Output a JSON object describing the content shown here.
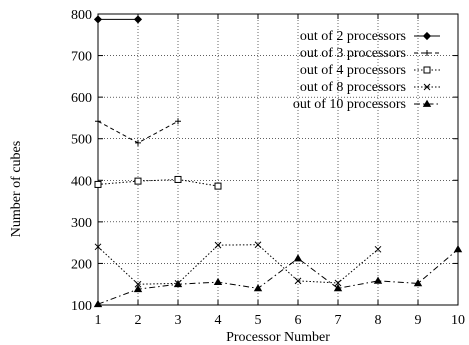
{
  "chart_data": {
    "type": "line",
    "title": "",
    "xlabel": "Processor Number",
    "ylabel": "Number of cubes",
    "xlim": [
      1,
      10
    ],
    "ylim": [
      100,
      800
    ],
    "xticks": [
      1,
      2,
      3,
      4,
      5,
      6,
      7,
      8,
      9,
      10
    ],
    "yticks": [
      100,
      200,
      300,
      400,
      500,
      600,
      700,
      800
    ],
    "grid": true,
    "legend_position": "top-right",
    "series": [
      {
        "name": "out of 2 processors",
        "marker": "diamond",
        "dash": "solid",
        "x": [
          1,
          2
        ],
        "y": [
          787,
          787
        ]
      },
      {
        "name": "out of 3 processors",
        "marker": "plus",
        "dash": "dashed",
        "x": [
          1,
          2,
          3
        ],
        "y": [
          542,
          490,
          542
        ]
      },
      {
        "name": "out of 4 processors",
        "marker": "square",
        "dash": "dotted",
        "x": [
          1,
          2,
          3,
          4
        ],
        "y": [
          390,
          398,
          402,
          386
        ]
      },
      {
        "name": "out of 8 processors",
        "marker": "cross",
        "dash": "dotted",
        "x": [
          1,
          2,
          3,
          4,
          5,
          6,
          7,
          8
        ],
        "y": [
          240,
          150,
          152,
          244,
          245,
          158,
          153,
          234
        ]
      },
      {
        "name": "out of 10 processors",
        "marker": "triangle",
        "dash": "dashdot",
        "x": [
          1,
          2,
          3,
          4,
          5,
          6,
          7,
          8,
          9,
          10
        ],
        "y": [
          102,
          138,
          150,
          155,
          140,
          212,
          140,
          158,
          152,
          234
        ]
      }
    ]
  }
}
